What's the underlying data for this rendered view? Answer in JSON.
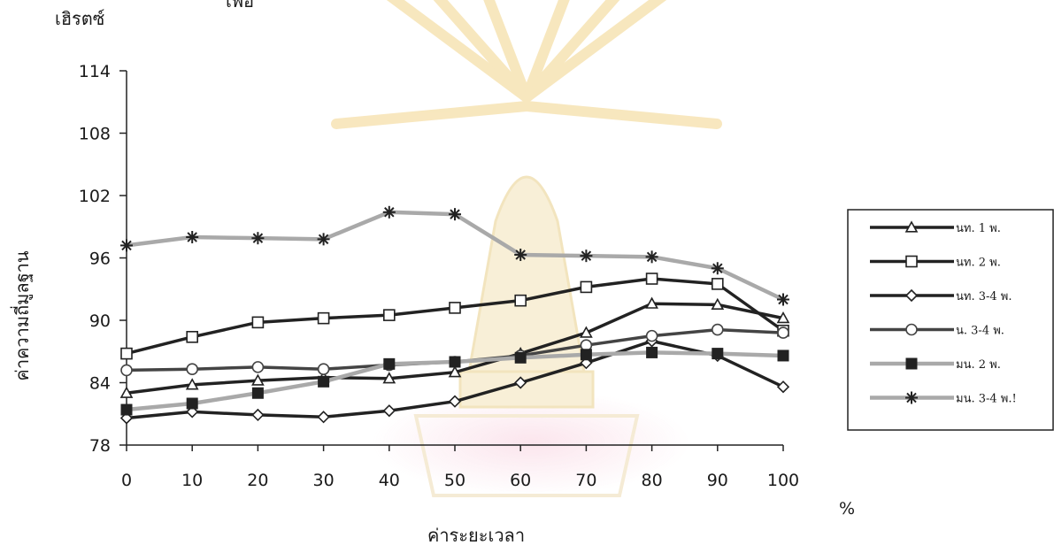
{
  "chart_data": {
    "type": "line",
    "title": "",
    "title_fragment": "เพื่อ",
    "y_unit": "เฮิรตซ์",
    "ylabel": "ค่าความถี่มูลฐาน",
    "xlabel": "ค่าระยะเวลา",
    "x_unit": "%",
    "x": [
      0,
      10,
      20,
      30,
      40,
      50,
      60,
      70,
      80,
      90,
      100
    ],
    "ylim": [
      78,
      114
    ],
    "yticks": [
      78,
      84,
      90,
      96,
      102,
      108,
      114
    ],
    "grid": false,
    "legend_position": "right",
    "series": [
      {
        "name": "นท. 1 พ.",
        "marker": "triangle",
        "color": "#222222",
        "values": [
          83.0,
          83.8,
          84.2,
          84.5,
          84.4,
          85.0,
          86.8,
          88.8,
          91.6,
          91.5,
          90.2
        ]
      },
      {
        "name": "นท. 2 พ.",
        "marker": "square-open",
        "color": "#222222",
        "values": [
          86.8,
          88.4,
          89.8,
          90.2,
          90.5,
          91.2,
          91.9,
          93.2,
          94.0,
          93.5,
          89.0
        ]
      },
      {
        "name": "นท. 3-4 พ.",
        "marker": "diamond",
        "color": "#222222",
        "values": [
          80.6,
          81.2,
          80.9,
          80.7,
          81.3,
          82.2,
          84.0,
          85.9,
          88.0,
          86.6,
          83.6
        ]
      },
      {
        "name": "น. 3-4 พ.",
        "marker": "circle",
        "color": "#444444",
        "values": [
          85.2,
          85.3,
          85.5,
          85.3,
          85.7,
          86.0,
          86.6,
          87.6,
          88.5,
          89.1,
          88.8
        ]
      },
      {
        "name": "มน. 2 พ.",
        "marker": "square-filled",
        "color": "#a9a9a9",
        "values": [
          81.4,
          82.0,
          83.0,
          84.1,
          85.8,
          86.0,
          86.4,
          86.7,
          86.9,
          86.8,
          86.6
        ]
      },
      {
        "name": "มน. 3-4 พ.!",
        "marker": "star",
        "color": "#a9a9a9",
        "values": [
          97.2,
          98.0,
          97.9,
          97.8,
          100.4,
          100.2,
          96.3,
          96.2,
          96.1,
          95.0,
          92.0
        ]
      }
    ]
  }
}
